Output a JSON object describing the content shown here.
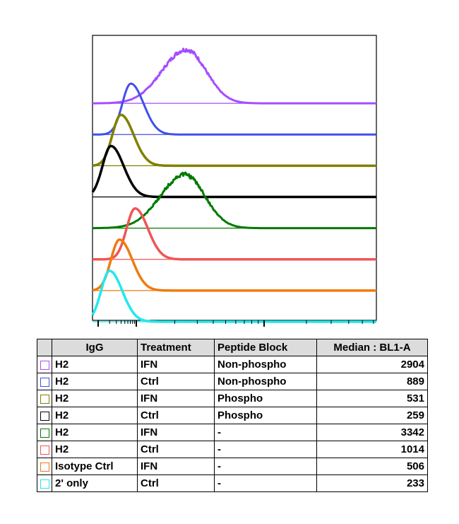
{
  "chart_data": {
    "type": "histogram-overlay",
    "x_scale": "log",
    "x_axis_labels": [],
    "series": [
      {
        "color": "#a64dff",
        "peak_median": 2904,
        "peak_x": 0.33,
        "shape": "broad"
      },
      {
        "color": "#4050e8",
        "peak_median": 889,
        "peak_x": 0.135,
        "shape": "narrow"
      },
      {
        "color": "#808000",
        "peak_median": 531,
        "peak_x": 0.1,
        "shape": "narrow"
      },
      {
        "color": "#000000",
        "peak_median": 259,
        "peak_x": 0.065,
        "shape": "narrow"
      },
      {
        "color": "#007a00",
        "peak_median": 3342,
        "peak_x": 0.325,
        "shape": "broad"
      },
      {
        "color": "#f05555",
        "peak_median": 1014,
        "peak_x": 0.15,
        "shape": "narrow"
      },
      {
        "color": "#f07a10",
        "peak_median": 506,
        "peak_x": 0.095,
        "shape": "narrow"
      },
      {
        "color": "#22e8ee",
        "peak_median": 233,
        "peak_x": 0.06,
        "shape": "narrow"
      }
    ]
  },
  "legend_table": {
    "headers": {
      "igg": "IgG",
      "treatment": "Treatment",
      "peptide_block": "Peptide Block",
      "median": "Median : BL1-A"
    },
    "rows": [
      {
        "color": "#a64dff",
        "igg": "H2",
        "treatment": "IFN",
        "peptide_block": "Non-phospho",
        "median": "2904"
      },
      {
        "color": "#4050e8",
        "igg": "H2",
        "treatment": "Ctrl",
        "peptide_block": "Non-phospho",
        "median": "889"
      },
      {
        "color": "#808000",
        "igg": "H2",
        "treatment": "IFN",
        "peptide_block": "Phospho",
        "median": "531"
      },
      {
        "color": "#000000",
        "igg": "H2",
        "treatment": "Ctrl",
        "peptide_block": "Phospho",
        "median": "259"
      },
      {
        "color": "#007a00",
        "igg": "H2",
        "treatment": "IFN",
        "peptide_block": "-",
        "median": "3342"
      },
      {
        "color": "#f05555",
        "igg": "H2",
        "treatment": "Ctrl",
        "peptide_block": "-",
        "median": "1014"
      },
      {
        "color": "#f07a10",
        "igg": "Isotype Ctrl",
        "treatment": "IFN",
        "peptide_block": "-",
        "median": "506"
      },
      {
        "color": "#22e8ee",
        "igg": "2' only",
        "treatment": "Ctrl",
        "peptide_block": "-",
        "median": "233"
      }
    ]
  }
}
